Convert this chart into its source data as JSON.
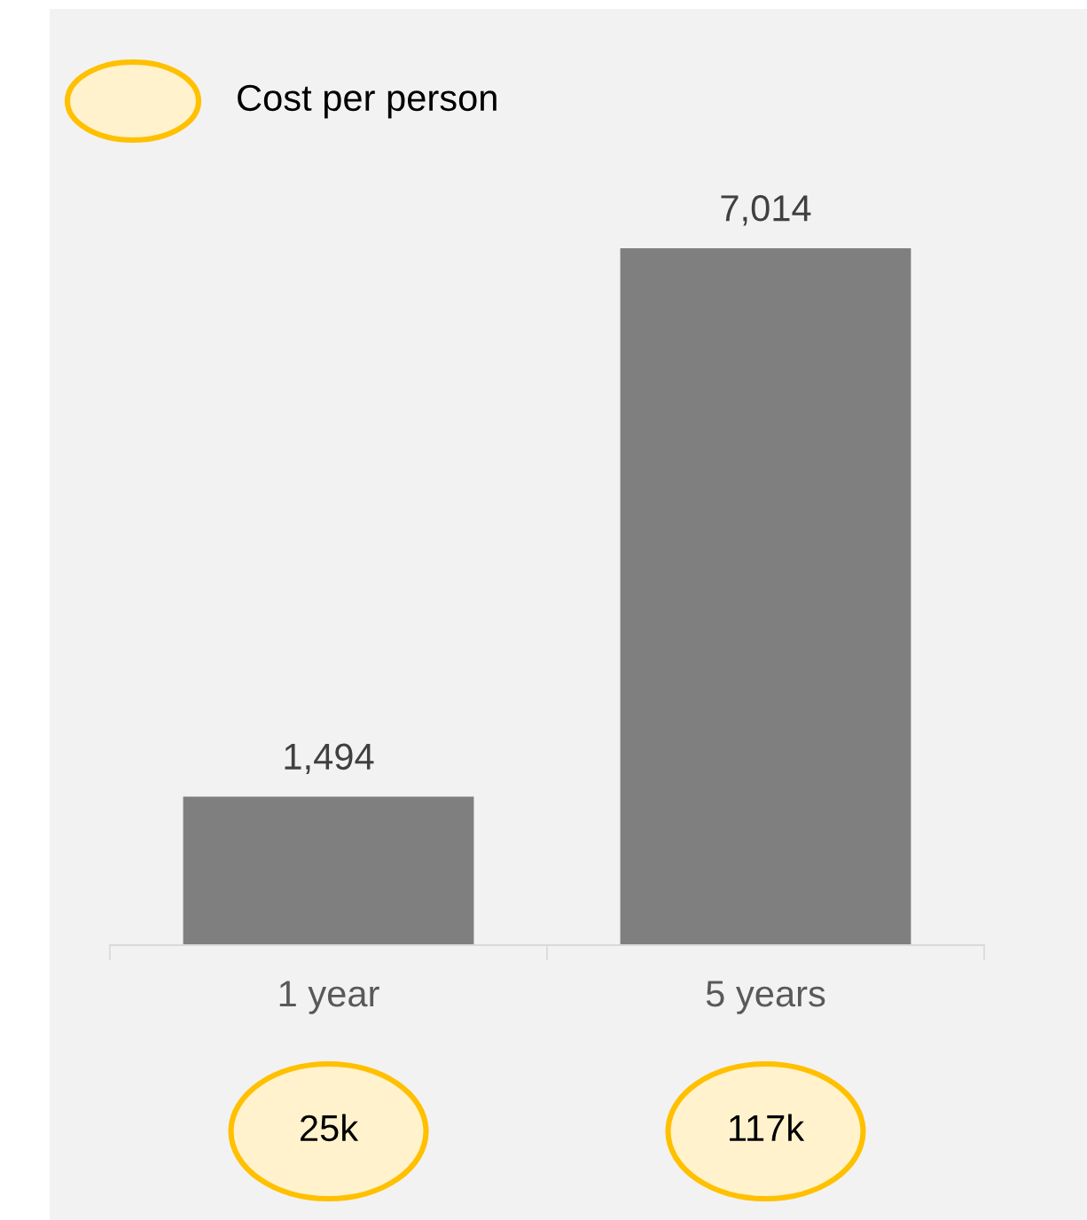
{
  "chart_data": {
    "type": "bar",
    "categories": [
      "1 year",
      "5 years"
    ],
    "values": [
      1494,
      7014
    ],
    "value_labels": [
      "1,494",
      "7,014"
    ],
    "color": "#7f7f7f",
    "annotations": [
      "Cost per person",
      "25k",
      "117k"
    ],
    "grid": false
  }
}
